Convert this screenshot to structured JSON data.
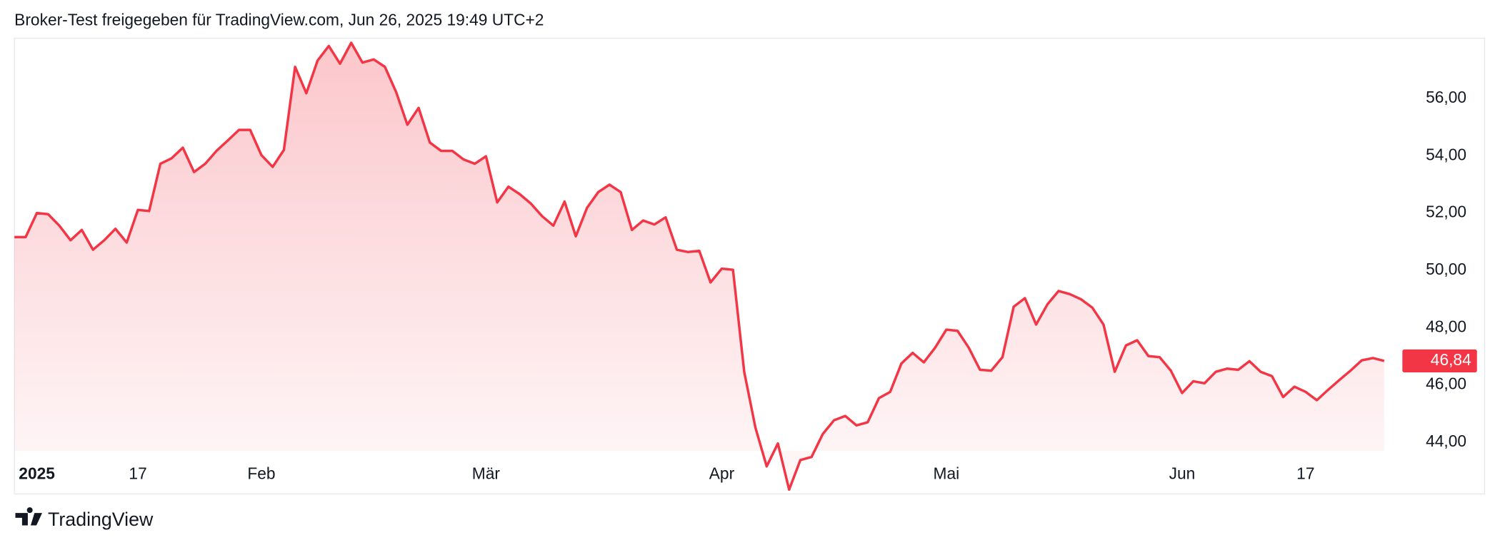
{
  "chart_data": {
    "type": "area",
    "title": "Broker-Test freigegeben für TradingView.com, Jun 26, 2025 19:49 UTC+2",
    "attribution": "TradingView",
    "color": "#f23645",
    "categories": [
      null,
      null,
      "2025",
      null,
      null,
      null,
      null,
      null,
      null,
      null,
      null,
      "17",
      null,
      null,
      null,
      null,
      null,
      null,
      null,
      null,
      null,
      null,
      "Feb",
      null,
      null,
      null,
      null,
      null,
      null,
      null,
      null,
      null,
      null,
      null,
      null,
      null,
      null,
      null,
      null,
      null,
      null,
      null,
      "Mär",
      null,
      null,
      null,
      null,
      null,
      null,
      null,
      null,
      null,
      null,
      null,
      null,
      null,
      null,
      null,
      null,
      null,
      null,
      null,
      null,
      "Apr",
      null,
      null,
      null,
      null,
      null,
      null,
      null,
      null,
      null,
      null,
      null,
      null,
      null,
      null,
      null,
      null,
      null,
      null,
      null,
      "Mai",
      null,
      null,
      null,
      null,
      null,
      null,
      null,
      null,
      null,
      null,
      null,
      null,
      null,
      null,
      null,
      null,
      null,
      null,
      null,
      null,
      "Jun",
      null,
      null,
      null,
      null,
      null,
      null,
      null,
      null,
      null,
      null,
      "17",
      null,
      null,
      null,
      null,
      null,
      null,
      null
    ],
    "values": [
      51.16,
      51.16,
      52.0,
      51.96,
      51.56,
      51.05,
      51.41,
      50.72,
      51.05,
      51.45,
      50.97,
      52.11,
      52.07,
      53.72,
      53.91,
      54.28,
      53.43,
      53.72,
      54.17,
      54.53,
      54.9,
      54.9,
      54.02,
      53.61,
      54.2,
      57.1,
      56.18,
      57.32,
      57.83,
      57.21,
      57.94,
      57.25,
      57.36,
      57.1,
      56.22,
      55.08,
      55.67,
      54.46,
      54.17,
      54.17,
      53.87,
      53.72,
      53.98,
      52.37,
      52.92,
      52.66,
      52.33,
      51.89,
      51.56,
      52.4,
      51.19,
      52.18,
      52.73,
      52.99,
      52.73,
      51.41,
      51.74,
      51.6,
      51.85,
      50.72,
      50.64,
      50.68,
      49.58,
      50.06,
      50.02,
      46.46,
      44.51,
      43.16,
      43.96,
      42.35,
      43.38,
      43.49,
      44.29,
      44.77,
      44.92,
      44.59,
      44.7,
      45.54,
      45.76,
      46.75,
      47.12,
      46.79,
      47.3,
      47.93,
      47.89,
      47.3,
      46.53,
      46.5,
      46.97,
      48.73,
      49.03,
      48.11,
      48.81,
      49.28,
      49.17,
      48.99,
      48.7,
      48.11,
      46.46,
      47.38,
      47.56,
      47.01,
      46.97,
      46.5,
      45.72,
      46.13,
      46.06,
      46.46,
      46.57,
      46.53,
      46.83,
      46.46,
      46.31,
      45.58,
      45.94,
      45.76,
      45.47,
      45.83,
      46.17,
      46.5,
      46.86,
      46.94,
      46.84
    ],
    "value_labels": [
      null,
      null,
      null,
      null,
      null,
      null,
      null,
      null,
      null,
      null,
      null,
      null,
      null,
      null,
      null,
      null,
      null,
      null,
      null,
      null,
      null,
      null,
      null,
      null,
      null,
      null,
      null,
      null,
      null,
      null,
      null,
      null,
      null,
      null,
      null,
      null,
      null,
      null,
      null,
      null,
      null,
      null,
      null,
      null,
      null,
      null,
      null,
      null,
      null,
      null,
      null,
      null,
      null,
      null,
      null,
      null,
      null,
      null,
      null,
      null,
      null,
      null,
      null,
      null,
      null,
      null,
      null,
      null,
      null,
      null,
      null,
      null,
      null,
      null,
      null,
      null,
      null,
      null,
      null,
      null,
      null,
      null,
      null,
      null,
      null,
      null,
      null,
      null,
      null,
      null,
      null,
      null,
      null,
      null,
      null,
      null,
      null,
      null,
      null,
      null,
      null,
      null,
      null,
      null,
      null,
      null,
      null,
      null,
      null,
      null,
      null,
      null,
      null,
      null,
      null,
      null,
      null,
      null,
      null,
      null,
      null,
      null,
      "46,84"
    ],
    "ylim": [
      42.2,
      58.1
    ],
    "yticks": [
      {
        "value": 44,
        "label": "44,00"
      },
      {
        "value": 46,
        "label": "46,00"
      },
      {
        "value": 48,
        "label": "48,00"
      },
      {
        "value": 50,
        "label": "50,00"
      },
      {
        "value": 52,
        "label": "52,00"
      },
      {
        "value": 54,
        "label": "54,00"
      },
      {
        "value": 56,
        "label": "56,00"
      }
    ]
  }
}
